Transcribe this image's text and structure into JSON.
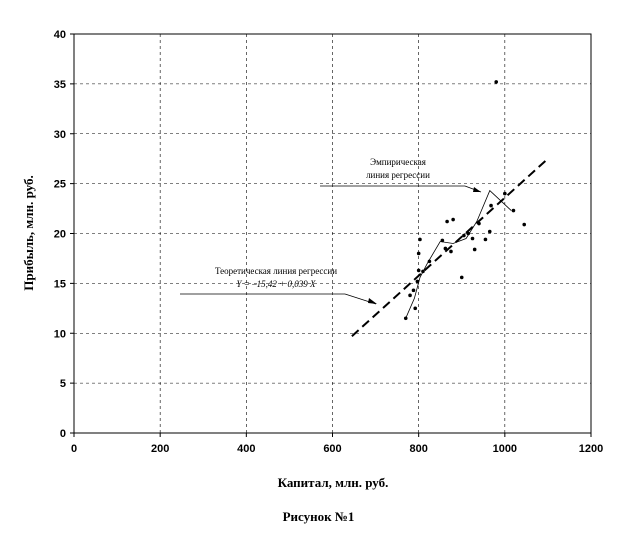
{
  "chart_data": {
    "type": "scatter",
    "xlabel": "Капитал, млн. руб.",
    "ylabel": "Прибыль, млн. руб.",
    "xlim": [
      0,
      1200
    ],
    "ylim": [
      0,
      40
    ],
    "x_ticks": [
      "0",
      "200",
      "400",
      "600",
      "800",
      "1000",
      "1200"
    ],
    "y_ticks": [
      "0",
      "5",
      "10",
      "15",
      "20",
      "25",
      "30",
      "35",
      "40"
    ],
    "grid": true,
    "points": [
      {
        "x": 770,
        "y": 11.5
      },
      {
        "x": 780,
        "y": 13.8
      },
      {
        "x": 788,
        "y": 14.3
      },
      {
        "x": 792,
        "y": 12.5
      },
      {
        "x": 797,
        "y": 15.2
      },
      {
        "x": 800,
        "y": 16.3
      },
      {
        "x": 800,
        "y": 18.0
      },
      {
        "x": 803,
        "y": 19.4
      },
      {
        "x": 810,
        "y": 16.2
      },
      {
        "x": 825,
        "y": 17.2
      },
      {
        "x": 855,
        "y": 19.3
      },
      {
        "x": 862,
        "y": 18.5
      },
      {
        "x": 866,
        "y": 21.2
      },
      {
        "x": 875,
        "y": 18.2
      },
      {
        "x": 880,
        "y": 21.4
      },
      {
        "x": 900,
        "y": 15.6
      },
      {
        "x": 905,
        "y": 19.8
      },
      {
        "x": 915,
        "y": 20.0
      },
      {
        "x": 925,
        "y": 19.5
      },
      {
        "x": 930,
        "y": 18.4
      },
      {
        "x": 940,
        "y": 21.0
      },
      {
        "x": 955,
        "y": 19.4
      },
      {
        "x": 965,
        "y": 20.2
      },
      {
        "x": 968,
        "y": 22.8
      },
      {
        "x": 980,
        "y": 35.2
      },
      {
        "x": 1000,
        "y": 24.0
      },
      {
        "x": 1020,
        "y": 22.3
      },
      {
        "x": 1045,
        "y": 20.9
      }
    ],
    "empirical_line": {
      "name": "Эмпирическая линия регрессии",
      "x": [
        770,
        790,
        803,
        820,
        850,
        880,
        910,
        935,
        965,
        1015
      ],
      "y": [
        11.5,
        13.5,
        15.6,
        17.0,
        19.2,
        19.0,
        19.5,
        21.2,
        24.3,
        22.3
      ]
    },
    "theoretical_line": {
      "name": "Теоретическая линия регрессии",
      "equation": "Y = –15,42 + 0,039 X",
      "x": [
        645,
        1100
      ],
      "y": [
        9.7,
        27.5
      ]
    },
    "annotations": [
      {
        "line1": "Эмпирическая",
        "line2": "линия регрессии"
      },
      {
        "line1": "Теоретическая линия регрессии",
        "line2": "Y = –15,42 + 0,039 X"
      }
    ],
    "caption": "Рисунок №1"
  }
}
